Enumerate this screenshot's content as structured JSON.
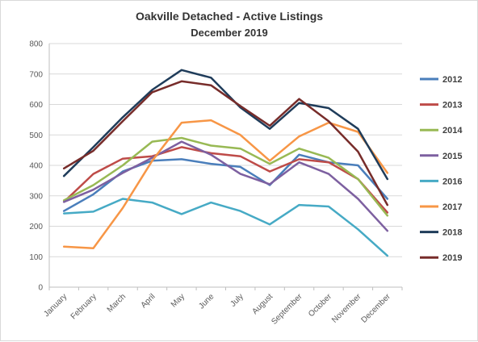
{
  "chart_data": {
    "type": "line",
    "title": "Oakville Detached - Active Listings",
    "subtitle": "December 2019",
    "xlabel": "",
    "ylabel": "",
    "categories": [
      "January",
      "February",
      "March",
      "April",
      "May",
      "June",
      "July",
      "August",
      "September",
      "October",
      "November",
      "December"
    ],
    "ylim": [
      0,
      800
    ],
    "yticks": [
      0,
      100,
      200,
      300,
      400,
      500,
      600,
      700,
      800
    ],
    "grid": true,
    "legend_position": "right",
    "series": [
      {
        "name": "2012",
        "color": "#4a7ebb",
        "values": [
          250,
          305,
          380,
          415,
          420,
          405,
          395,
          335,
          435,
          410,
          400,
          290
        ]
      },
      {
        "name": "2013",
        "color": "#be4b48",
        "values": [
          280,
          372,
          422,
          430,
          460,
          440,
          430,
          380,
          420,
          410,
          355,
          245
        ]
      },
      {
        "name": "2014",
        "color": "#98b954",
        "values": [
          285,
          335,
          400,
          478,
          490,
          465,
          455,
          405,
          455,
          425,
          355,
          235
        ]
      },
      {
        "name": "2015",
        "color": "#7d60a0",
        "values": [
          280,
          320,
          375,
          425,
          478,
          435,
          372,
          338,
          410,
          372,
          290,
          185
        ]
      },
      {
        "name": "2016",
        "color": "#46aac5",
        "values": [
          242,
          248,
          290,
          278,
          240,
          278,
          250,
          206,
          270,
          265,
          190,
          103
        ]
      },
      {
        "name": "2017",
        "color": "#f79646",
        "values": [
          133,
          128,
          260,
          415,
          540,
          548,
          500,
          415,
          495,
          540,
          510,
          375
        ]
      },
      {
        "name": "2018",
        "color": "#1f3c5a",
        "values": [
          365,
          460,
          558,
          648,
          713,
          688,
          590,
          520,
          605,
          588,
          520,
          355
        ]
      },
      {
        "name": "2019",
        "color": "#772c2a",
        "values": [
          390,
          448,
          545,
          640,
          676,
          663,
          595,
          530,
          618,
          545,
          445,
          270
        ]
      }
    ]
  }
}
